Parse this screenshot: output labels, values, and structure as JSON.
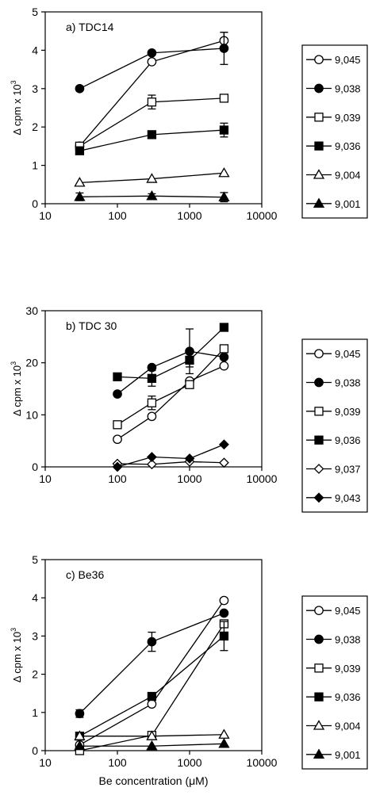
{
  "chart_data": [
    {
      "type": "line",
      "title": "a) TDC14",
      "ylabel": "Δ cpm x 10",
      "ylabel_exp": "3",
      "xlabel": "",
      "xscale": "log",
      "xlim": [
        10,
        10000
      ],
      "ylim": [
        0,
        5
      ],
      "xticks": [
        10,
        100,
        1000,
        10000
      ],
      "xtick_labels": [
        "10",
        "100",
        "1000",
        "10000"
      ],
      "yticks": [
        0,
        1,
        2,
        3,
        4,
        5
      ],
      "ytick_labels": [
        "0",
        "1",
        "2",
        "3",
        "4",
        "5"
      ],
      "legend_position": "right",
      "x": [
        30,
        300,
        3000
      ],
      "series": [
        {
          "name": "9,045",
          "marker": "circle-open",
          "values": [
            1.5,
            3.7,
            4.25
          ],
          "err": [
            0,
            0,
            0.22
          ]
        },
        {
          "name": "9,038",
          "marker": "circle-filled",
          "values": [
            3.0,
            3.93,
            4.05
          ],
          "err": [
            0,
            0,
            0.42
          ]
        },
        {
          "name": "9,039",
          "marker": "square-open",
          "values": [
            1.5,
            2.65,
            2.75
          ],
          "err": [
            0,
            0.18,
            0
          ]
        },
        {
          "name": "9,036",
          "marker": "square-filled",
          "values": [
            1.38,
            1.8,
            1.92
          ],
          "err": [
            0,
            0,
            0.18
          ]
        },
        {
          "name": "9,004",
          "marker": "triangle-open",
          "values": [
            0.55,
            0.65,
            0.8
          ],
          "err": [
            0,
            0,
            0
          ]
        },
        {
          "name": "9,001",
          "marker": "triangle-filled",
          "values": [
            0.18,
            0.2,
            0.17
          ],
          "err": [
            0.1,
            0.06,
            0.12
          ]
        }
      ]
    },
    {
      "type": "line",
      "title": "b) TDC 30",
      "ylabel": "Δ cpm x 10",
      "ylabel_exp": "3",
      "xlabel": "",
      "xscale": "log",
      "xlim": [
        10,
        10000
      ],
      "ylim": [
        0,
        30
      ],
      "xticks": [
        10,
        100,
        1000,
        10000
      ],
      "xtick_labels": [
        "10",
        "100",
        "1000",
        "10000"
      ],
      "yticks": [
        0,
        10,
        20,
        30
      ],
      "ytick_labels": [
        "0",
        "10",
        "20",
        "30"
      ],
      "legend_position": "right",
      "x": [
        100,
        300,
        1000,
        3000
      ],
      "series": [
        {
          "name": "9,045",
          "marker": "circle-open",
          "values": [
            5.3,
            9.7,
            16.5,
            19.4
          ],
          "err": [
            0,
            0,
            0,
            0
          ]
        },
        {
          "name": "9,038",
          "marker": "circle-filled",
          "values": [
            14.0,
            19.1,
            22.2,
            21.1
          ],
          "err": [
            0,
            0,
            4.3,
            0
          ]
        },
        {
          "name": "9,039",
          "marker": "square-open",
          "values": [
            8.1,
            12.3,
            15.8,
            22.7
          ],
          "err": [
            0,
            1.3,
            0,
            0
          ]
        },
        {
          "name": "9,036",
          "marker": "square-filled",
          "values": [
            17.3,
            17.0,
            20.5,
            26.8
          ],
          "err": [
            0,
            1.5,
            1.3,
            0
          ]
        },
        {
          "name": "9,037",
          "marker": "diamond-open",
          "values": [
            0.6,
            0.5,
            1.0,
            0.8
          ],
          "err": [
            0,
            0,
            0,
            0
          ]
        },
        {
          "name": "9,043",
          "marker": "diamond-filled",
          "values": [
            0.0,
            1.9,
            1.6,
            4.3
          ],
          "err": [
            0,
            0,
            0,
            0
          ]
        }
      ]
    },
    {
      "type": "line",
      "title": "c) Be36",
      "ylabel": "Δ cpm x 10",
      "ylabel_exp": "3",
      "xlabel": "Be concentration (μM)",
      "xscale": "log",
      "xlim": [
        10,
        10000
      ],
      "ylim": [
        0,
        5
      ],
      "xticks": [
        10,
        100,
        1000,
        10000
      ],
      "xtick_labels": [
        "10",
        "100",
        "1000",
        "10000"
      ],
      "yticks": [
        0,
        1,
        2,
        3,
        4,
        5
      ],
      "ytick_labels": [
        "0",
        "1",
        "2",
        "3",
        "4",
        "5"
      ],
      "legend_position": "right",
      "x": [
        30,
        300,
        3000
      ],
      "series": [
        {
          "name": "9,045",
          "marker": "circle-open",
          "values": [
            0.15,
            1.22,
            3.93
          ],
          "err": [
            0,
            0,
            0
          ]
        },
        {
          "name": "9,038",
          "marker": "circle-filled",
          "values": [
            0.97,
            2.85,
            3.6
          ],
          "err": [
            0.1,
            0.25,
            0
          ]
        },
        {
          "name": "9,039",
          "marker": "square-open",
          "values": [
            0.0,
            0.4,
            3.32
          ],
          "err": [
            0,
            0,
            0
          ]
        },
        {
          "name": "9,036",
          "marker": "square-filled",
          "values": [
            0.38,
            1.42,
            3.0
          ],
          "err": [
            0,
            0,
            0.38
          ]
        },
        {
          "name": "9,004",
          "marker": "triangle-open",
          "values": [
            0.38,
            0.38,
            0.42
          ],
          "err": [
            0,
            0,
            0
          ]
        },
        {
          "name": "9,001",
          "marker": "triangle-filled",
          "values": [
            0.12,
            0.12,
            0.18
          ],
          "err": [
            0,
            0,
            0
          ]
        }
      ]
    }
  ]
}
